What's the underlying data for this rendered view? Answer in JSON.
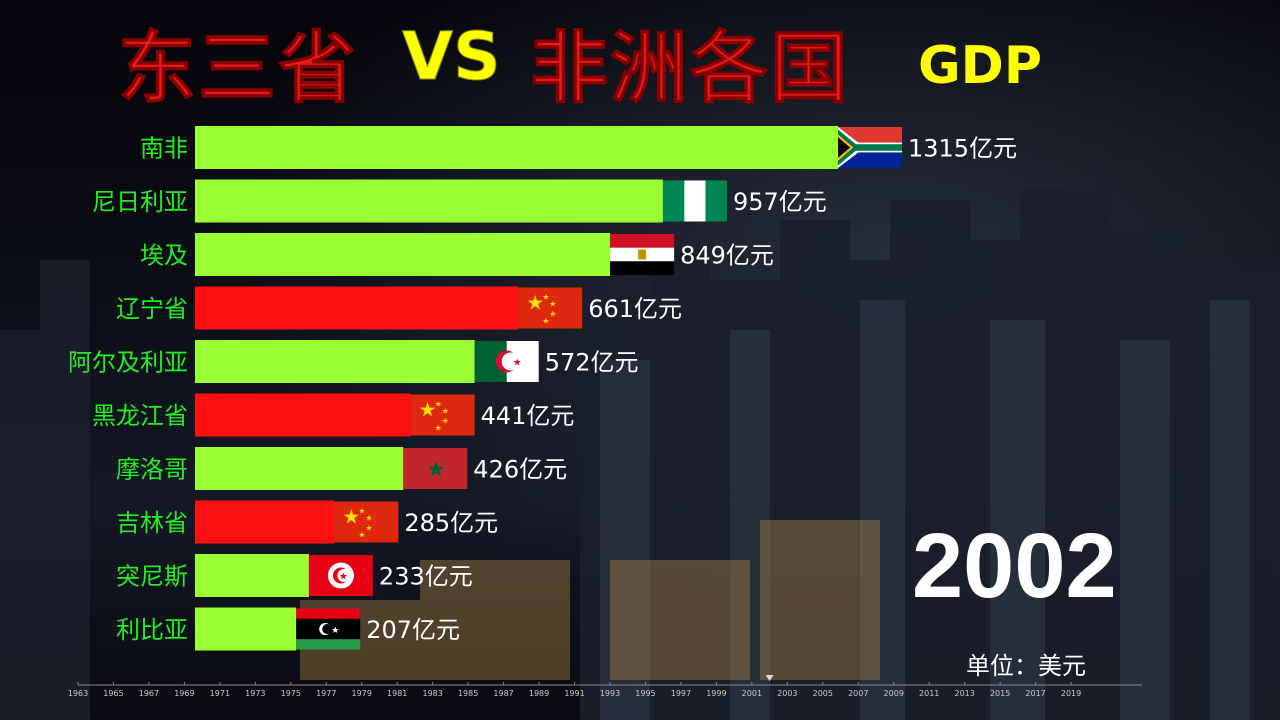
{
  "title": {
    "part1": "东三省",
    "part2": "VS",
    "part3": "非洲各国",
    "part4": "GDP"
  },
  "year": "2002",
  "unit": "单位：美元",
  "colors": {
    "africa": "#99ff33",
    "china": "#ff1010",
    "label": "#22ee22",
    "title_red": "#e31b1b",
    "title_yellow": "#ffff00"
  },
  "chart_data": {
    "type": "bar",
    "orientation": "horizontal",
    "categories": [
      "南非",
      "尼日利亚",
      "埃及",
      "辽宁省",
      "阿尔及利亚",
      "黑龙江省",
      "摩洛哥",
      "吉林省",
      "突尼斯",
      "利比亚"
    ],
    "values": [
      1315,
      957,
      849,
      661,
      572,
      441,
      426,
      285,
      233,
      207
    ],
    "value_labels": [
      "1315亿元",
      "957亿元",
      "849亿元",
      "661亿元",
      "572亿元",
      "441亿元",
      "426亿元",
      "285亿元",
      "233亿元",
      "207亿元"
    ],
    "groups": [
      "africa",
      "africa",
      "africa",
      "china",
      "africa",
      "china",
      "africa",
      "china",
      "africa",
      "africa"
    ],
    "flags": [
      "south-africa-flag",
      "nigeria-flag",
      "egypt-flag",
      "china-flag",
      "algeria-flag",
      "china-flag",
      "morocco-flag",
      "china-flag",
      "tunisia-flag",
      "libya-flag"
    ]
  },
  "timeline": {
    "ticks": [
      "1963",
      "1965",
      "1967",
      "1969",
      "1971",
      "1973",
      "1975",
      "1977",
      "1979",
      "1981",
      "1983",
      "1985",
      "1987",
      "1989",
      "1991",
      "1993",
      "1995",
      "1997",
      "1999",
      "2001",
      "2003",
      "2005",
      "2007",
      "2009",
      "2011",
      "2013",
      "2015",
      "2017",
      "2019"
    ],
    "current": 2002
  }
}
